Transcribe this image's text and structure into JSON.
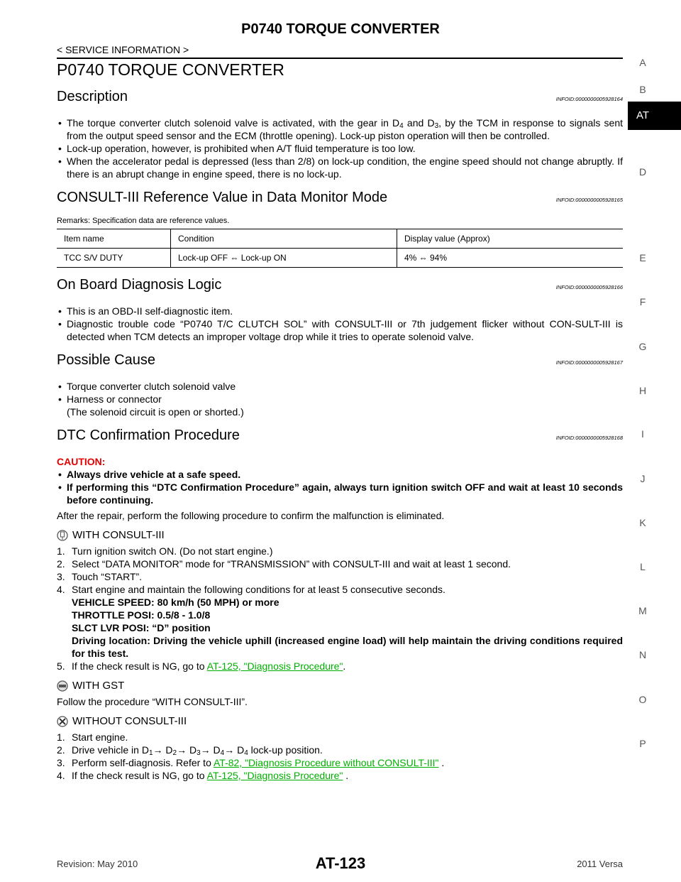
{
  "header": {
    "title": "P0740 TORQUE CONVERTER",
    "section": "< SERVICE INFORMATION >"
  },
  "side_index": [
    "A",
    "B",
    "AT",
    "D",
    "E",
    "F",
    "G",
    "H",
    "I",
    "J",
    "K",
    "L",
    "M",
    "N",
    "O",
    "P"
  ],
  "page_title": "P0740 TORQUE CONVERTER",
  "sections": [
    {
      "heading": "Description",
      "infoid": "INFOID:0000000005928164",
      "blocks": [
        {
          "bullets": [
            [
              "The torque converter clutch solenoid valve is activated, with the gear in D",
              {
                "sub": "4"
              },
              " and D",
              {
                "sub": "3"
              },
              ", by the TCM in response to signals sent from the output speed sensor and the ECM (throttle opening). Lock-up piston operation will then be controlled."
            ],
            "Lock-up operation, however, is prohibited when A/T fluid temperature is too low.",
            "When the accelerator pedal is depressed (less than 2/8) on lock-up condition, the engine speed should not change abruptly. If there is an abrupt change in engine speed, there is no lock-up."
          ]
        }
      ]
    },
    {
      "heading": "CONSULT-III Reference Value in Data Monitor Mode",
      "infoid": "INFOID:0000000005928165",
      "blocks": [
        {
          "note": "Remarks: Specification data are reference values."
        },
        {
          "table": {
            "header": [
              "Item name",
              "Condition",
              "Display value (Approx)"
            ],
            "rows": [
              [
                "TCC S/V DUTY",
                "Lock-up OFF ⇔ Lock-up ON",
                "4% ⇔ 94%"
              ]
            ]
          }
        }
      ]
    },
    {
      "heading": "On Board Diagnosis Logic",
      "infoid": "INFOID:0000000005928166",
      "blocks": [
        {
          "bullets": [
            "This is an OBD-II self-diagnostic item.",
            "Diagnostic trouble code “P0740 T/C CLUTCH SOL” with CONSULT-III or 7th judgement flicker without CON-SULT-III is detected when TCM detects an improper voltage drop while it tries to operate solenoid valve."
          ]
        }
      ]
    },
    {
      "heading": "Possible Cause",
      "infoid": "INFOID:0000000005928167",
      "blocks": [
        {
          "bullets": [
            "Torque converter clutch solenoid valve",
            "Harness or connector\n(The solenoid circuit is open or shorted.)"
          ]
        }
      ]
    },
    {
      "heading": "DTC Confirmation Procedure",
      "infoid": "INFOID:0000000005928168",
      "blocks": [
        {
          "caution": {
            "label": "CAUTION:",
            "items": [
              "Always drive vehicle at a safe speed.",
              "If performing this “DTC Confirmation Procedure” again, always turn ignition switch OFF and wait at least 10 seconds before continuing."
            ]
          }
        },
        {
          "text": "After the repair, perform the following procedure to confirm the malfunction is eliminated."
        },
        {
          "mode": "WITH CONSULT-III",
          "steps": [
            {
              "num": "1.",
              "text": "Turn ignition switch ON. (Do not start engine.)"
            },
            {
              "num": "2.",
              "text": "Select “DATA MONITOR” mode for “TRANSMISSION” with CONSULT-III and wait at least 1 second."
            },
            {
              "num": "3.",
              "text": "Touch “START”."
            },
            {
              "num": "4.",
              "text": "Start engine and maintain the following conditions for at least 5 consecutive seconds.",
              "details": [
                "VEHICLE SPEED: 80 km/h (50 MPH) or more",
                "THROTTLE POSI: 0.5/8 - 1.0/8",
                "SLCT LVR POSI: “D” position",
                "Driving location: Driving the vehicle uphill (increased engine load) will help maintain the driving conditions required for this test."
              ]
            },
            {
              "num": "5.",
              "text": [
                "If the check result is NG, go to ",
                {
                  "link": "AT-125, \"Diagnosis Procedure\""
                },
                "."
              ]
            }
          ]
        },
        {
          "mode": "WITH GST",
          "text": "Follow the procedure “WITH CONSULT-III”."
        },
        {
          "mode": "WITHOUT CONSULT-III",
          "steps": [
            {
              "num": "1.",
              "text": "Start engine."
            },
            {
              "num": "2.",
              "text": [
                "Drive vehicle in D",
                {
                  "sub": "1"
                },
                "→ D",
                {
                  "sub": "2"
                },
                "→ D",
                {
                  "sub": "3"
                },
                "→ D",
                {
                  "sub": "4"
                },
                "→ D",
                {
                  "sub": "4"
                },
                "  lock-up position."
              ]
            },
            {
              "num": "3.",
              "text": [
                "Perform self-diagnosis. Refer to ",
                {
                  "link": "AT-82, \"Diagnosis Procedure without CONSULT-III\""
                },
                " ."
              ]
            },
            {
              "num": "4.",
              "text": [
                "If the check result is NG, go to ",
                {
                  "link": "AT-125, \"Diagnosis Procedure\""
                },
                " ."
              ]
            }
          ]
        }
      ]
    }
  ],
  "footer": {
    "revision": "Revision: May 2010",
    "page": "AT-123",
    "model": "2011 Versa"
  }
}
